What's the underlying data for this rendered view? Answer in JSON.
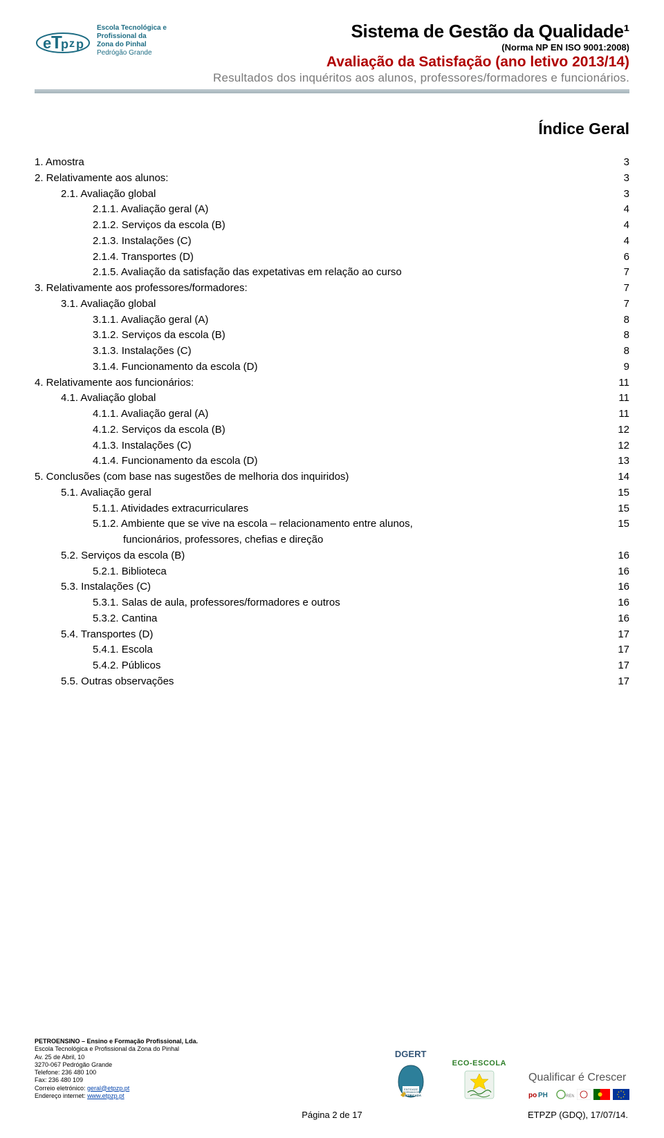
{
  "header": {
    "logo": {
      "line1": "Escola Tecnológica e",
      "line2": "Profissional da",
      "line3": "Zona do Pinhal",
      "line4": "Pedrógão Grande",
      "monogram": "eTpzp"
    },
    "title1": "Sistema de Gestão da Qualidade¹",
    "subtitle1": "(Norma NP EN ISO 9001:2008)",
    "title2": "Avaliação da Satisfação (ano letivo 2013/14)",
    "subtitle2": "Resultados dos inquéritos aos alunos, professores/formadores e funcionários."
  },
  "indexTitle": "Índice Geral",
  "toc": [
    {
      "ind": 0,
      "txt": "1.  Amostra",
      "pg": "3"
    },
    {
      "ind": 0,
      "txt": "2.  Relativamente aos alunos:",
      "pg": "3"
    },
    {
      "ind": 1,
      "txt": "2.1.  Avaliação global",
      "pg": "3"
    },
    {
      "ind": 2,
      "txt": "2.1.1.  Avaliação geral (A)",
      "pg": "4"
    },
    {
      "ind": 2,
      "txt": "2.1.2.  Serviços da escola (B)",
      "pg": "4"
    },
    {
      "ind": 2,
      "txt": "2.1.3.  Instalações (C)",
      "pg": "4"
    },
    {
      "ind": 2,
      "txt": "2.1.4.  Transportes (D)",
      "pg": "6"
    },
    {
      "ind": 2,
      "txt": "2.1.5.  Avaliação da satisfação das expetativas em relação ao curso",
      "pg": "7"
    },
    {
      "ind": 0,
      "txt": "3.  Relativamente aos professores/formadores:",
      "pg": "7"
    },
    {
      "ind": 1,
      "txt": "3.1.  Avaliação global",
      "pg": "7"
    },
    {
      "ind": 2,
      "txt": "3.1.1.  Avaliação geral (A)",
      "pg": "8"
    },
    {
      "ind": 2,
      "txt": "3.1.2.  Serviços da escola (B)",
      "pg": "8"
    },
    {
      "ind": 2,
      "txt": "3.1.3.  Instalações (C)",
      "pg": "8"
    },
    {
      "ind": 2,
      "txt": "3.1.4.  Funcionamento da escola (D)",
      "pg": "9"
    },
    {
      "ind": 0,
      "txt": "4.  Relativamente aos funcionários:",
      "pg": "11"
    },
    {
      "ind": 1,
      "txt": "4.1.  Avaliação global",
      "pg": "11"
    },
    {
      "ind": 2,
      "txt": "4.1.1.  Avaliação geral (A)",
      "pg": "11"
    },
    {
      "ind": 2,
      "txt": "4.1.2.  Serviços da escola (B)",
      "pg": "12"
    },
    {
      "ind": 2,
      "txt": "4.1.3.  Instalações (C)",
      "pg": "12"
    },
    {
      "ind": 2,
      "txt": "4.1.4.  Funcionamento da escola (D)",
      "pg": "13"
    },
    {
      "ind": 0,
      "txt": "5.  Conclusões (com base nas sugestões de melhoria dos inquiridos)",
      "pg": "14"
    },
    {
      "ind": 1,
      "txt": "5.1.  Avaliação geral",
      "pg": "15"
    },
    {
      "ind": 2,
      "txt": "5.1.1.  Atividades extracurriculares",
      "pg": "15"
    },
    {
      "ind": 2,
      "txt": "5.1.2.  Ambiente que se vive na escola – relacionamento entre alunos,",
      "pg": "15"
    },
    {
      "ind": "2b",
      "txt": "funcionários, professores, chefias e direção",
      "pg": ""
    },
    {
      "ind": 1,
      "txt": "5.2.  Serviços da escola (B)",
      "pg": "16"
    },
    {
      "ind": 2,
      "txt": "5.2.1.  Biblioteca",
      "pg": "16"
    },
    {
      "ind": 1,
      "txt": "5.3.  Instalações (C)",
      "pg": "16"
    },
    {
      "ind": 2,
      "txt": "5.3.1.  Salas de aula, professores/formadores e outros",
      "pg": "16"
    },
    {
      "ind": 2,
      "txt": "5.3.2.  Cantina",
      "pg": "16"
    },
    {
      "ind": 1,
      "txt": "5.4.  Transportes (D)",
      "pg": "17"
    },
    {
      "ind": 2,
      "txt": "5.4.1.  Escola",
      "pg": "17"
    },
    {
      "ind": 2,
      "txt": "5.4.2.  Públicos",
      "pg": "17"
    },
    {
      "ind": 1,
      "txt": "5.5.  Outras observações",
      "pg": "17"
    }
  ],
  "footer": {
    "org": "PETROENSINO – Ensino e Formação Profissional, Lda.",
    "school": "Escola Tecnológica e Profissional da Zona do Pinhal",
    "addr1": "Av. 25 de Abril, 10",
    "addr2": "3270-067 Pedrógão Grande",
    "tel": "Telefone: 236 480 100",
    "fax": "Fax: 236 480 109",
    "email_label": "Correio eletrónico: ",
    "email": "geral@etpzp.pt",
    "web_label": "Endereço internet: ",
    "web": "www.etpzp.pt",
    "badges": {
      "dgert": "DGERT",
      "dgert_sub": "ENTIDADE FORMADORA CERTIFICADA",
      "eco": "ECO-ESCOLA",
      "qualificar": "Qualificar é Crescer",
      "poph": "poPH",
      "qren": "QREN"
    },
    "page": "Página 2 de 17",
    "stamp": "ETPZP (GDQ), 17/07/14."
  },
  "colors": {
    "teal": "#1e6d84",
    "red": "#b00000",
    "gray": "#7a7a7a",
    "ruleTop": "#c0cbd0",
    "ruleBot": "#a5b4bb"
  }
}
